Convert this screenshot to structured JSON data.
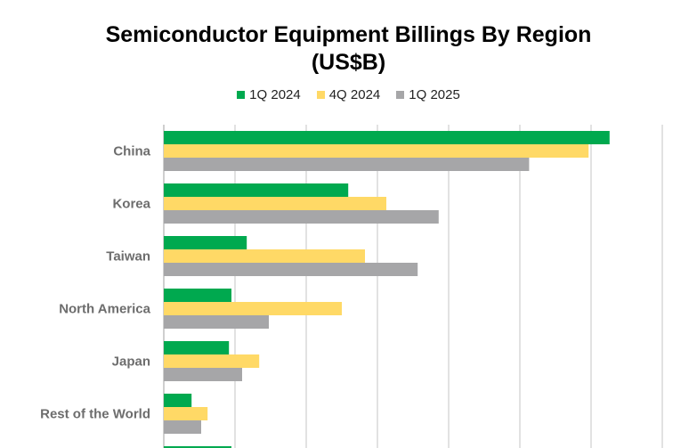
{
  "chart_data": {
    "type": "bar",
    "orientation": "horizontal",
    "title": "Semiconductor Equipment Billings By Region (US$B)",
    "title_lines": [
      "Semiconductor Equipment Billings By Region",
      "(US$B)"
    ],
    "categories": [
      "China",
      "Korea",
      "Taiwan",
      "North America",
      "Japan",
      "Rest of the World",
      ""
    ],
    "series": [
      {
        "name": "1Q 2024",
        "color": "#00A94F",
        "values": [
          12.52,
          5.18,
          2.33,
          1.9,
          1.83,
          0.78,
          1.9
        ]
      },
      {
        "name": "4Q 2024",
        "color": "#FFD966",
        "values": [
          11.93,
          6.25,
          5.65,
          5.0,
          2.68,
          1.23,
          null
        ]
      },
      {
        "name": "1Q 2025",
        "color": "#A6A6A8",
        "values": [
          10.26,
          7.72,
          7.13,
          2.95,
          2.2,
          1.05,
          null
        ]
      }
    ],
    "xlim": [
      0,
      14
    ],
    "x_gridline_step": 2,
    "grid": true,
    "legend": "top-center",
    "xlabel": "",
    "ylabel": ""
  }
}
